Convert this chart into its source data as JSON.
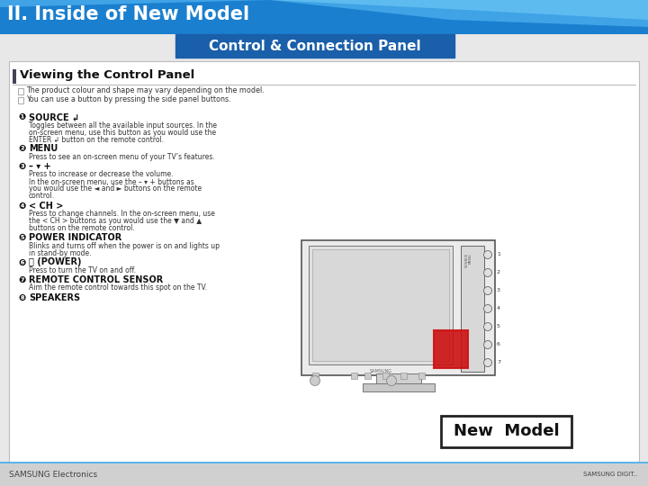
{
  "title_text": "II. Inside of New Model",
  "subtitle_text": "Control & Connection Panel",
  "header_bg_color": "#1e9ee8",
  "subtitle_bg_color": "#1a6fba",
  "body_bg_color": "#e8e8e8",
  "content_bg_color": "#ffffff",
  "footer_bg_color": "#d0d0d0",
  "footer_text": "SAMSUNG Electronics",
  "section_title": "Viewing the Control Panel",
  "new_model_text": "New  Model",
  "figsize": [
    7.2,
    5.4
  ],
  "dpi": 100
}
